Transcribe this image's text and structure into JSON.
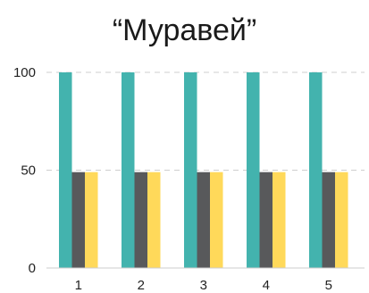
{
  "chart_data": {
    "type": "bar",
    "title": "“Муравей”",
    "xlabel": "",
    "ylabel": "",
    "categories": [
      "1",
      "2",
      "3",
      "4",
      "5"
    ],
    "series": [
      {
        "color": "#43B3AE",
        "values": [
          100,
          100,
          100,
          100,
          100
        ]
      },
      {
        "color": "#58595B",
        "values": [
          49,
          49,
          49,
          49,
          49
        ]
      },
      {
        "color": "#FFD95A",
        "values": [
          49,
          49,
          49,
          49,
          49
        ]
      }
    ],
    "ylim": [
      0,
      105
    ],
    "yticks": [
      0,
      50,
      100
    ],
    "grid": true,
    "legend": "none"
  }
}
